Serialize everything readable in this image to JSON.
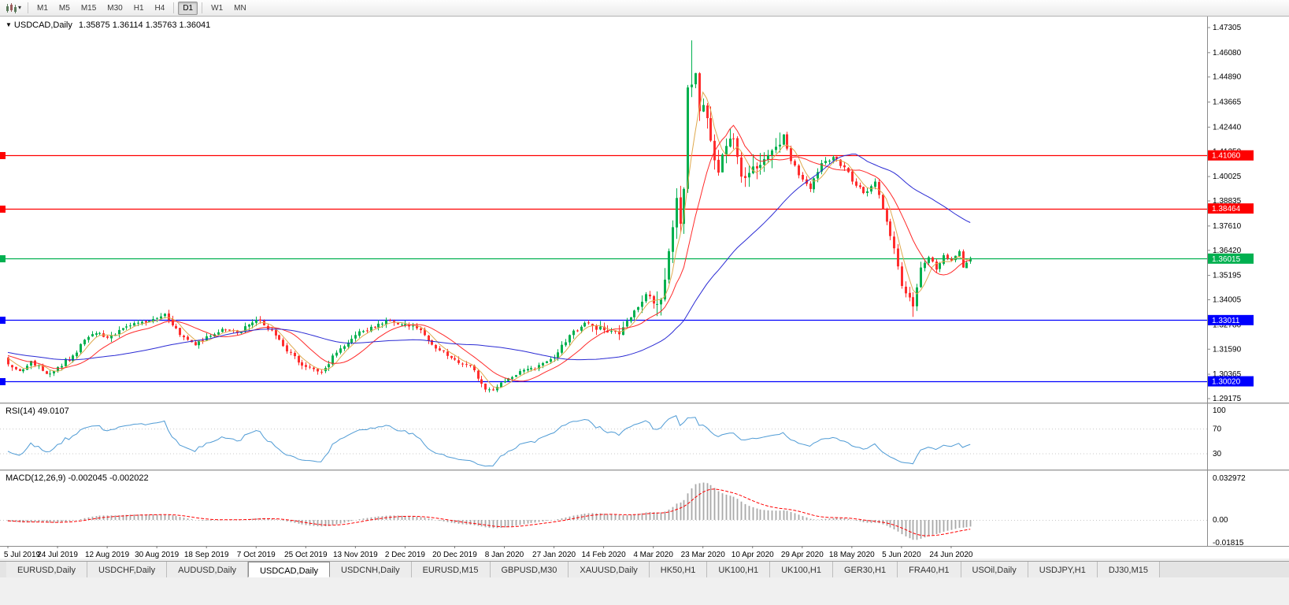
{
  "toolbar": {
    "dropdown_caret": "▾",
    "timeframes": [
      "M1",
      "M5",
      "M15",
      "M30",
      "H1",
      "H4",
      "D1",
      "W1",
      "MN"
    ],
    "active_timeframe": "D1",
    "separators_after": [
      "H4",
      "D1"
    ]
  },
  "chart": {
    "collapse_icon": "▼",
    "title_symbol": "USDCAD,Daily",
    "ohlc_string": "1.35875 1.36114 1.35763 1.36041",
    "rsi_label": "RSI(14) 49.0107",
    "macd_label": "MACD(12,26,9) -0.002045 -0.002022"
  },
  "chart_data": {
    "type": "candlestick",
    "symbol": "USDCAD",
    "timeframe": "Daily",
    "title": "USDCAD,Daily",
    "last_ohlc": {
      "open": 1.35875,
      "high": 1.36114,
      "low": 1.35763,
      "close": 1.36041
    },
    "ylim": [
      1.29175,
      1.47305
    ],
    "price_axis_labels": [
      "1.47305",
      "1.46080",
      "1.44890",
      "1.43665",
      "1.42440",
      "1.41250",
      "1.40025",
      "1.38835",
      "1.37610",
      "1.36420",
      "1.35195",
      "1.34005",
      "1.32780",
      "1.31590",
      "1.30365",
      "1.29175"
    ],
    "horizontal_levels": [
      {
        "price": 1.4106,
        "label": "1.41060",
        "color": "#fe0000"
      },
      {
        "price": 1.38464,
        "label": "1.38464",
        "color": "#fe0000"
      },
      {
        "price": 1.36015,
        "label": "1.36015",
        "color": "#00b050"
      },
      {
        "price": 1.33011,
        "label": "1.33011",
        "color": "#0000fe"
      },
      {
        "price": 1.3002,
        "label": "1.30020",
        "color": "#0000fe"
      }
    ],
    "date_axis_labels": [
      {
        "label": "5 Jul 2019",
        "i": 0
      },
      {
        "label": "24 Jul 2019",
        "i": 13
      },
      {
        "label": "12 Aug 2019",
        "i": 26
      },
      {
        "label": "30 Aug 2019",
        "i": 39
      },
      {
        "label": "18 Sep 2019",
        "i": 52
      },
      {
        "label": "7 Oct 2019",
        "i": 65
      },
      {
        "label": "25 Oct 2019",
        "i": 78
      },
      {
        "label": "13 Nov 2019",
        "i": 91
      },
      {
        "label": "2 Dec 2019",
        "i": 104
      },
      {
        "label": "20 Dec 2019",
        "i": 117
      },
      {
        "label": "8 Jan 2020",
        "i": 130
      },
      {
        "label": "27 Jan 2020",
        "i": 143
      },
      {
        "label": "14 Feb 2020",
        "i": 156
      },
      {
        "label": "4 Mar 2020",
        "i": 169
      },
      {
        "label": "23 Mar 2020",
        "i": 182
      },
      {
        "label": "10 Apr 2020",
        "i": 195
      },
      {
        "label": "29 Apr 2020",
        "i": 208
      },
      {
        "label": "18 May 2020",
        "i": 221
      },
      {
        "label": "5 Jun 2020",
        "i": 234
      },
      {
        "label": "24 Jun 2020",
        "i": 247
      }
    ],
    "candle_count": 253,
    "price_path": [
      [
        0,
        1.3085
      ],
      [
        3,
        1.3052
      ],
      [
        6,
        1.3102
      ],
      [
        10,
        1.3038
      ],
      [
        13,
        1.3072
      ],
      [
        17,
        1.3128
      ],
      [
        20,
        1.3205
      ],
      [
        24,
        1.3238
      ],
      [
        26,
        1.3215
      ],
      [
        30,
        1.3262
      ],
      [
        34,
        1.3288
      ],
      [
        38,
        1.3306
      ],
      [
        41,
        1.3332
      ],
      [
        45,
        1.3228
      ],
      [
        49,
        1.3178
      ],
      [
        52,
        1.3222
      ],
      [
        56,
        1.3258
      ],
      [
        60,
        1.3238
      ],
      [
        65,
        1.3302
      ],
      [
        69,
        1.3252
      ],
      [
        73,
        1.3148
      ],
      [
        78,
        1.3072
      ],
      [
        82,
        1.3048
      ],
      [
        86,
        1.3142
      ],
      [
        91,
        1.3228
      ],
      [
        95,
        1.3268
      ],
      [
        100,
        1.3298
      ],
      [
        104,
        1.3282
      ],
      [
        108,
        1.3252
      ],
      [
        112,
        1.3162
      ],
      [
        117,
        1.3108
      ],
      [
        121,
        1.3078
      ],
      [
        125,
        1.2962
      ],
      [
        127,
        1.2958
      ],
      [
        130,
        1.3002
      ],
      [
        134,
        1.3052
      ],
      [
        138,
        1.3062
      ],
      [
        143,
        1.3118
      ],
      [
        147,
        1.3228
      ],
      [
        151,
        1.3288
      ],
      [
        156,
        1.3252
      ],
      [
        160,
        1.3232
      ],
      [
        164,
        1.3348
      ],
      [
        167,
        1.3428
      ],
      [
        169,
        1.3382
      ],
      [
        171,
        1.3402
      ],
      [
        173,
        1.3638
      ],
      [
        175,
        1.3898
      ],
      [
        176,
        1.3772
      ],
      [
        177,
        1.3942
      ],
      [
        178,
        1.4438
      ],
      [
        179,
        1.4452
      ],
      [
        180,
        1.4508
      ],
      [
        181,
        1.4322
      ],
      [
        182,
        1.4352
      ],
      [
        184,
        1.4178
      ],
      [
        186,
        1.4022
      ],
      [
        188,
        1.4152
      ],
      [
        190,
        1.4188
      ],
      [
        192,
        1.4002
      ],
      [
        195,
        1.4052
      ],
      [
        198,
        1.4088
      ],
      [
        201,
        1.4148
      ],
      [
        203,
        1.4208
      ],
      [
        205,
        1.4078
      ],
      [
        208,
        1.3988
      ],
      [
        210,
        1.3942
      ],
      [
        213,
        1.4068
      ],
      [
        216,
        1.4098
      ],
      [
        219,
        1.4048
      ],
      [
        221,
        1.3978
      ],
      [
        224,
        1.3922
      ],
      [
        227,
        1.3978
      ],
      [
        230,
        1.3782
      ],
      [
        232,
        1.3652
      ],
      [
        234,
        1.3468
      ],
      [
        236,
        1.3412
      ],
      [
        237,
        1.3368
      ],
      [
        239,
        1.3558
      ],
      [
        241,
        1.3608
      ],
      [
        243,
        1.3548
      ],
      [
        245,
        1.3618
      ],
      [
        247,
        1.3592
      ],
      [
        249,
        1.3638
      ],
      [
        250,
        1.3558
      ],
      [
        251,
        1.3582
      ],
      [
        252,
        1.36041
      ]
    ],
    "extremes": [
      {
        "index": 179,
        "high": 1.4668
      },
      {
        "index": 125,
        "low": 1.2949
      },
      {
        "index": 237,
        "low": 1.3317
      }
    ],
    "moving_averages": [
      {
        "period": 5,
        "color": "#dfa94e"
      },
      {
        "period": 13,
        "color": "#ff2a2a"
      },
      {
        "period": 45,
        "color": "#2b2bd4"
      }
    ],
    "candle_colors": {
      "up": "#00b04e",
      "down": "#ff2d2d"
    },
    "indicators": {
      "rsi": {
        "name": "RSI",
        "period": 14,
        "current": 49.0107,
        "color": "#4f9bd5",
        "levels": [
          70,
          30
        ],
        "axis_labels": [
          {
            "v": 100,
            "label": "100"
          },
          {
            "v": 70,
            "label": "70"
          },
          {
            "v": 30,
            "label": "30"
          }
        ]
      },
      "macd": {
        "name": "MACD",
        "fast": 12,
        "slow": 26,
        "signal": 9,
        "current": "-0.002045 -0.002022",
        "histogram_color": "#a9a9a9",
        "signal_color": "#ff0000",
        "axis_labels": [
          {
            "v": 0.032972,
            "label": "0.032972"
          },
          {
            "v": 0,
            "label": "0.00"
          },
          {
            "v": -0.01815,
            "label": "-0.01815"
          }
        ]
      }
    }
  },
  "tabs": {
    "items": [
      "EURUSD,Daily",
      "USDCHF,Daily",
      "AUDUSD,Daily",
      "USDCAD,Daily",
      "USDCNH,Daily",
      "EURUSD,M15",
      "GBPUSD,M30",
      "XAUUSD,Daily",
      "HK50,H1",
      "UK100,H1",
      "UK100,H1",
      "GER30,H1",
      "FRA40,H1",
      "USOil,Daily",
      "USDJPY,H1",
      "DJ30,M15"
    ],
    "active": "USDCAD,Daily"
  }
}
